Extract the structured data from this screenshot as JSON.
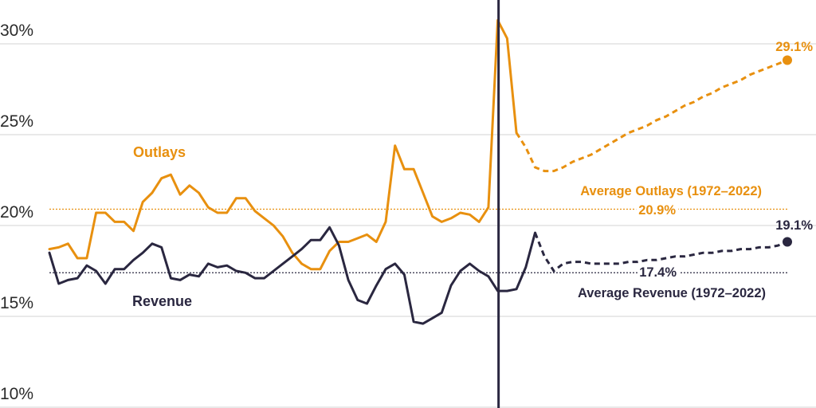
{
  "chart_data": {
    "type": "line",
    "title": "",
    "xlabel": "",
    "ylabel": "",
    "ylim": [
      10,
      32.5
    ],
    "xlim": [
      1972,
      2053
    ],
    "yticks": [
      {
        "value": 10,
        "label": "10%"
      },
      {
        "value": 15,
        "label": "15%"
      },
      {
        "value": 20,
        "label": "20%"
      },
      {
        "value": 25,
        "label": "25%"
      },
      {
        "value": 30,
        "label": "30%"
      }
    ],
    "grid": "horizontal",
    "divider_year": 2020,
    "colors": {
      "outlays": "#e8900f",
      "revenue": "#2a2740",
      "grid": "#dcdcdc",
      "tick_text": "#2b2b2b"
    },
    "series": [
      {
        "key": "outlays",
        "name": "Outlays",
        "color": "#e8900f",
        "actual": [
          [
            1972,
            18.7
          ],
          [
            1973,
            18.8
          ],
          [
            1974,
            19.0
          ],
          [
            1975,
            18.2
          ],
          [
            1976,
            18.2
          ],
          [
            1977,
            20.7
          ],
          [
            1978,
            20.7
          ],
          [
            1979,
            20.2
          ],
          [
            1980,
            20.2
          ],
          [
            1981,
            19.7
          ],
          [
            1982,
            21.3
          ],
          [
            1983,
            21.8
          ],
          [
            1984,
            22.6
          ],
          [
            1985,
            22.8
          ],
          [
            1986,
            21.7
          ],
          [
            1987,
            22.2
          ],
          [
            1988,
            21.8
          ],
          [
            1989,
            21.0
          ],
          [
            1990,
            20.7
          ],
          [
            1991,
            20.7
          ],
          [
            1992,
            21.5
          ],
          [
            1993,
            21.5
          ],
          [
            1994,
            20.8
          ],
          [
            1995,
            20.4
          ],
          [
            1996,
            20.0
          ],
          [
            1997,
            19.4
          ],
          [
            1998,
            18.5
          ],
          [
            1999,
            17.9
          ],
          [
            2000,
            17.6
          ],
          [
            2001,
            17.6
          ],
          [
            2002,
            18.6
          ],
          [
            2003,
            19.1
          ],
          [
            2004,
            19.1
          ],
          [
            2005,
            19.3
          ],
          [
            2006,
            19.5
          ],
          [
            2007,
            19.1
          ],
          [
            2008,
            20.2
          ],
          [
            2009,
            24.4
          ],
          [
            2010,
            23.1
          ],
          [
            2011,
            23.1
          ],
          [
            2012,
            21.8
          ],
          [
            2013,
            20.5
          ],
          [
            2014,
            20.2
          ],
          [
            2015,
            20.4
          ],
          [
            2016,
            20.7
          ],
          [
            2017,
            20.6
          ],
          [
            2018,
            20.2
          ],
          [
            2019,
            21.0
          ],
          [
            2020,
            31.3
          ],
          [
            2021,
            30.3
          ],
          [
            2022,
            25.1
          ]
        ],
        "projected": [
          [
            2022,
            25.1
          ],
          [
            2023,
            24.3
          ],
          [
            2024,
            23.2
          ],
          [
            2025,
            23.0
          ],
          [
            2026,
            23.0
          ],
          [
            2027,
            23.2
          ],
          [
            2028,
            23.5
          ],
          [
            2029,
            23.7
          ],
          [
            2030,
            23.9
          ],
          [
            2031,
            24.2
          ],
          [
            2032,
            24.5
          ],
          [
            2033,
            24.8
          ],
          [
            2034,
            25.1
          ],
          [
            2035,
            25.3
          ],
          [
            2036,
            25.5
          ],
          [
            2037,
            25.8
          ],
          [
            2038,
            26.0
          ],
          [
            2039,
            26.3
          ],
          [
            2040,
            26.6
          ],
          [
            2041,
            26.8
          ],
          [
            2042,
            27.1
          ],
          [
            2043,
            27.3
          ],
          [
            2044,
            27.6
          ],
          [
            2045,
            27.8
          ],
          [
            2046,
            28.0
          ],
          [
            2047,
            28.3
          ],
          [
            2048,
            28.5
          ],
          [
            2049,
            28.7
          ],
          [
            2050,
            28.9
          ],
          [
            2051,
            29.1
          ]
        ],
        "end_label": "29.1%",
        "average": {
          "value": 20.9,
          "label": "Average Outlays (1972–2022)",
          "value_label": "20.9%"
        }
      },
      {
        "key": "revenue",
        "name": "Revenue",
        "color": "#2a2740",
        "actual": [
          [
            1972,
            18.5
          ],
          [
            1973,
            16.8
          ],
          [
            1974,
            17.0
          ],
          [
            1975,
            17.1
          ],
          [
            1976,
            17.8
          ],
          [
            1977,
            17.5
          ],
          [
            1978,
            16.8
          ],
          [
            1979,
            17.6
          ],
          [
            1980,
            17.6
          ],
          [
            1981,
            18.1
          ],
          [
            1982,
            18.5
          ],
          [
            1983,
            19.0
          ],
          [
            1984,
            18.8
          ],
          [
            1985,
            17.1
          ],
          [
            1986,
            17.0
          ],
          [
            1987,
            17.3
          ],
          [
            1988,
            17.2
          ],
          [
            1989,
            17.9
          ],
          [
            1990,
            17.7
          ],
          [
            1991,
            17.8
          ],
          [
            1992,
            17.5
          ],
          [
            1993,
            17.4
          ],
          [
            1994,
            17.1
          ],
          [
            1995,
            17.1
          ],
          [
            1996,
            17.5
          ],
          [
            1997,
            17.9
          ],
          [
            1998,
            18.3
          ],
          [
            1999,
            18.7
          ],
          [
            2000,
            19.2
          ],
          [
            2001,
            19.2
          ],
          [
            2002,
            19.9
          ],
          [
            2003,
            18.9
          ],
          [
            2004,
            17.0
          ],
          [
            2005,
            15.9
          ],
          [
            2006,
            15.7
          ],
          [
            2007,
            16.7
          ],
          [
            2008,
            17.6
          ],
          [
            2009,
            17.9
          ],
          [
            2010,
            17.3
          ],
          [
            2011,
            14.7
          ],
          [
            2012,
            14.6
          ],
          [
            2013,
            14.9
          ],
          [
            2014,
            15.2
          ],
          [
            2015,
            16.7
          ],
          [
            2016,
            17.5
          ],
          [
            2017,
            17.9
          ],
          [
            2018,
            17.5
          ],
          [
            2019,
            17.2
          ],
          [
            2020,
            16.4
          ],
          [
            2021,
            16.4
          ],
          [
            2022,
            16.5
          ],
          [
            2023,
            17.7
          ],
          [
            2024,
            19.6
          ]
        ],
        "projected": [
          [
            2024,
            19.6
          ],
          [
            2025,
            18.3
          ],
          [
            2026,
            17.5
          ],
          [
            2027,
            17.9
          ],
          [
            2028,
            18.0
          ],
          [
            2029,
            18.0
          ],
          [
            2030,
            17.9
          ],
          [
            2031,
            17.9
          ],
          [
            2032,
            17.9
          ],
          [
            2033,
            17.9
          ],
          [
            2034,
            18.0
          ],
          [
            2035,
            18.0
          ],
          [
            2036,
            18.1
          ],
          [
            2037,
            18.1
          ],
          [
            2038,
            18.2
          ],
          [
            2039,
            18.3
          ],
          [
            2040,
            18.3
          ],
          [
            2041,
            18.4
          ],
          [
            2042,
            18.5
          ],
          [
            2043,
            18.5
          ],
          [
            2044,
            18.6
          ],
          [
            2045,
            18.6
          ],
          [
            2046,
            18.7
          ],
          [
            2047,
            18.7
          ],
          [
            2048,
            18.8
          ],
          [
            2049,
            18.8
          ],
          [
            2050,
            18.9
          ],
          [
            2051,
            19.1
          ]
        ],
        "end_label": "19.1%",
        "average": {
          "value": 17.4,
          "label": "Average Revenue (1972–2022)",
          "value_label": "17.4%"
        }
      }
    ]
  }
}
